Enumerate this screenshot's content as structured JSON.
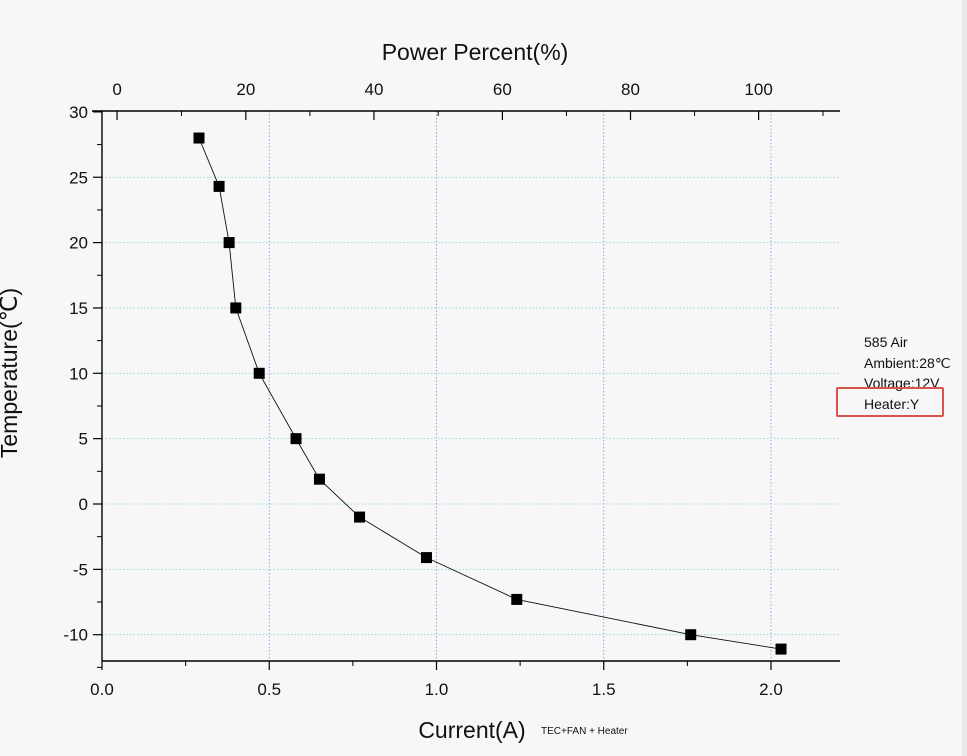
{
  "chart_data": {
    "type": "line",
    "title": "",
    "xlabel": "Current(A)",
    "xlabel_note": "TEC+FAN + Heater",
    "ylabel": "Temperature(℃)",
    "top_xlabel": "Power Percent(%)",
    "xlim": [
      0.0,
      2.2
    ],
    "ylim": [
      -12,
      30
    ],
    "xticks": [
      "0.0",
      "0.5",
      "1.0",
      "1.5",
      "2.0"
    ],
    "xtick_values": [
      0.0,
      0.5,
      1.0,
      1.5,
      2.0
    ],
    "yticks": [
      "30",
      "25",
      "20",
      "15",
      "10",
      "5",
      "0",
      "-5",
      "-10"
    ],
    "ytick_values": [
      30,
      25,
      20,
      15,
      10,
      5,
      0,
      -5,
      -10
    ],
    "top_xticks": [
      "0",
      "20",
      "40",
      "60",
      "80",
      "100"
    ],
    "top_xtick_positions": [
      0.045,
      0.43,
      0.813,
      1.197,
      1.58,
      1.963
    ],
    "grid": true,
    "grid_color": "#7fd3df",
    "vgrid_color": "#8a8ae6",
    "marker_color": "#000000",
    "series": [
      {
        "x": [
          0.29,
          0.35,
          0.38,
          0.4,
          0.47,
          0.58,
          0.65,
          0.77,
          0.97,
          1.24,
          1.76,
          2.03
        ],
        "y": [
          28,
          24.3,
          20,
          15,
          10,
          5,
          1.9,
          -1,
          -4.1,
          -7.3,
          -10,
          -11.1
        ]
      }
    ]
  },
  "annotation": {
    "lines": [
      "585 Air",
      "Ambient:28℃",
      "Voltage:12V",
      "Heater:Y"
    ],
    "highlight_color": "#d9534f"
  }
}
